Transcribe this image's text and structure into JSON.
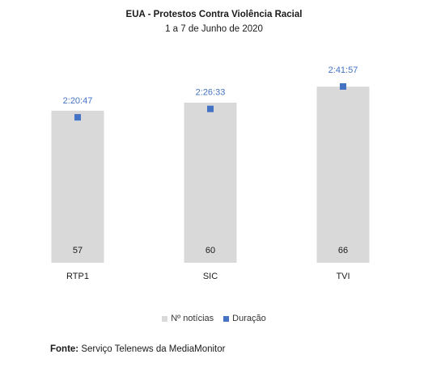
{
  "chart_data": {
    "type": "bar",
    "title": "EUA - Protestos Contra Violência Racial",
    "subtitle": "1 a 7 de Junho de 2020",
    "categories": [
      "RTP1",
      "SIC",
      "TVI"
    ],
    "series": [
      {
        "name": "Nº notícias",
        "type": "bar",
        "color": "#d9d9d9",
        "values": [
          57,
          60,
          66
        ],
        "labels": [
          "57",
          "60",
          "66"
        ]
      },
      {
        "name": "Duração",
        "type": "marker",
        "color": "#4472c4",
        "values": [
          8447,
          8793,
          9717
        ],
        "labels": [
          "2:20:47",
          "2:26:33",
          "2:41:57"
        ]
      }
    ],
    "xlabel": "",
    "ylabel": "",
    "legend_position": "bottom",
    "grid": false
  },
  "source": {
    "label": "Fonte:",
    "text": "Serviço Telenews da MediaMonitor"
  },
  "colors": {
    "bar": "#d9d9d9",
    "marker": "#4472c4",
    "marker_label": "#4472c4",
    "text": "#1a1a1a"
  }
}
